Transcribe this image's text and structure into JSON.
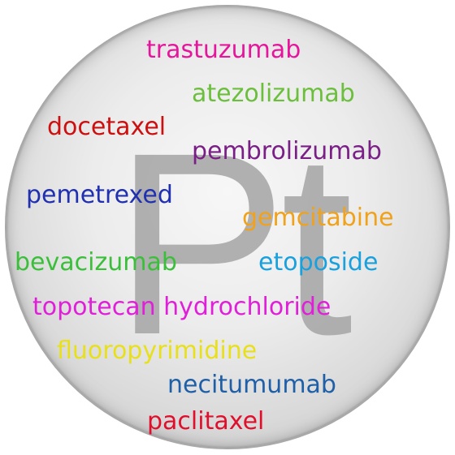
{
  "element_symbol": "Pt",
  "drugs": [
    {
      "name": "trastuzumab",
      "color": "#e6169c"
    },
    {
      "name": "atezolizumab",
      "color": "#6cbf3c"
    },
    {
      "name": "docetaxel",
      "color": "#cc1010"
    },
    {
      "name": "pembrolizumab",
      "color": "#7a1f86"
    },
    {
      "name": "pemetrexed",
      "color": "#2030b0"
    },
    {
      "name": "gemcitabine",
      "color": "#f0a21c"
    },
    {
      "name": "bevacizumab",
      "color": "#3bbf3b"
    },
    {
      "name": "etoposide",
      "color": "#1aa0dc"
    },
    {
      "name": "topotecan hydrochloride",
      "color": "#e020d8"
    },
    {
      "name": "fluoropyrimidine",
      "color": "#e8e01c"
    },
    {
      "name": "necitumumab",
      "color": "#1f5fa8"
    },
    {
      "name": "paclitaxel",
      "color": "#e0102c"
    }
  ]
}
